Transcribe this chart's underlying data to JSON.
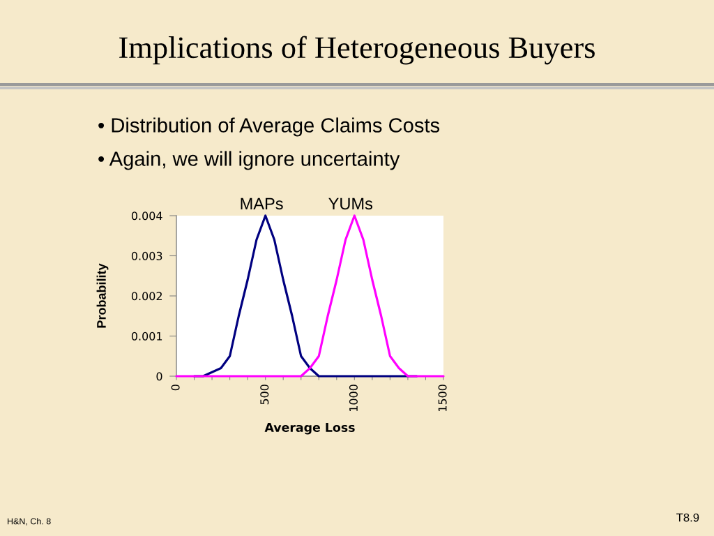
{
  "chart_data": {
    "type": "line",
    "title": "Implications of Heterogeneous Buyers",
    "annotations": [
      "• Distribution of Average Claims Costs",
      "• Again, we will ignore uncertainty",
      "H&N, Ch. 8",
      "T8.9"
    ],
    "xlabel": "Average Loss",
    "ylabel": "Probability",
    "x": [
      0,
      50,
      100,
      150,
      200,
      250,
      300,
      350,
      400,
      450,
      500,
      550,
      600,
      650,
      700,
      750,
      800,
      850,
      900,
      950,
      1000,
      1050,
      1100,
      1150,
      1200,
      1250,
      1300,
      1350,
      1400,
      1450,
      1500
    ],
    "series": [
      {
        "name": "MAPs",
        "color": "#000080",
        "values": [
          null,
          null,
          0,
          0,
          0.0001,
          0.0002,
          0.0005,
          0.0015,
          0.0024,
          0.0034,
          0.004,
          0.0034,
          0.0024,
          0.0015,
          0.0005,
          0.0002,
          0,
          0,
          0,
          0,
          0,
          0,
          0,
          0,
          0,
          0,
          0,
          0,
          null,
          null,
          null
        ]
      },
      {
        "name": "YUMs",
        "color": "#ff00ff",
        "values": [
          0,
          0,
          0,
          0,
          0,
          0,
          0,
          0,
          0,
          0,
          0,
          0,
          0,
          0,
          0,
          0.0002,
          0.0005,
          0.0015,
          0.0024,
          0.0034,
          0.004,
          0.0034,
          0.0024,
          0.0015,
          0.0005,
          0.0002,
          0,
          0,
          0,
          0,
          0
        ]
      }
    ],
    "xlim": [
      0,
      1500
    ],
    "xticks": [
      0,
      {
        "value": 100,
        "label": null
      },
      {
        "value": 200,
        "label": null
      },
      {
        "value": 300,
        "label": null
      },
      {
        "value": 400,
        "label": null
      },
      500,
      {
        "value": 600,
        "label": null
      },
      {
        "value": 700,
        "label": null
      },
      {
        "value": 800,
        "label": null
      },
      {
        "value": 900,
        "label": null
      },
      1000,
      {
        "value": 1100,
        "label": null
      },
      {
        "value": 1200,
        "label": null
      },
      {
        "value": 1300,
        "label": null
      },
      {
        "value": 1400,
        "label": null
      },
      1500
    ],
    "ylim": [
      0,
      0.004
    ],
    "yticks": [
      0,
      0.001,
      0.002,
      0.003,
      0.004
    ]
  }
}
